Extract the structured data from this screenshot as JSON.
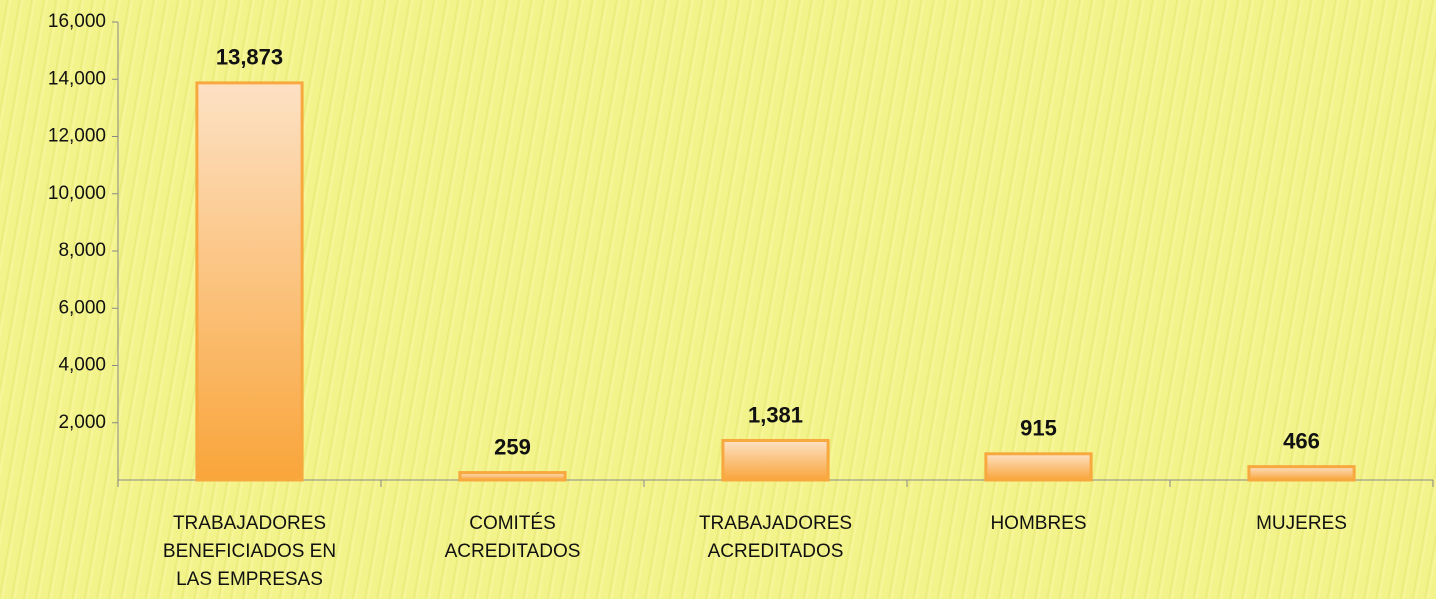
{
  "chart_data": {
    "type": "bar",
    "categories": [
      "TRABAJADORES BENEFICIADOS EN LAS EMPRESAS",
      "COMITÉS ACREDITADOS",
      "TRABAJADORES ACREDITADOS",
      "HOMBRES",
      "MUJERES"
    ],
    "values": [
      13873,
      259,
      1381,
      915,
      466
    ],
    "value_labels": [
      "13,873",
      "259",
      "1,381",
      "915",
      "466"
    ],
    "color": "#f7a83e",
    "ylim": [
      0,
      16000
    ],
    "yticks": [
      {
        "value": 2000,
        "label": "2,000"
      },
      {
        "value": 4000,
        "label": "4,000"
      },
      {
        "value": 6000,
        "label": "6,000"
      },
      {
        "value": 8000,
        "label": "8,000"
      },
      {
        "value": 10000,
        "label": "10,000"
      },
      {
        "value": 12000,
        "label": "12,000"
      },
      {
        "value": 14000,
        "label": "14,000"
      },
      {
        "value": 16000,
        "label": "16,000"
      }
    ],
    "grid": false
  }
}
